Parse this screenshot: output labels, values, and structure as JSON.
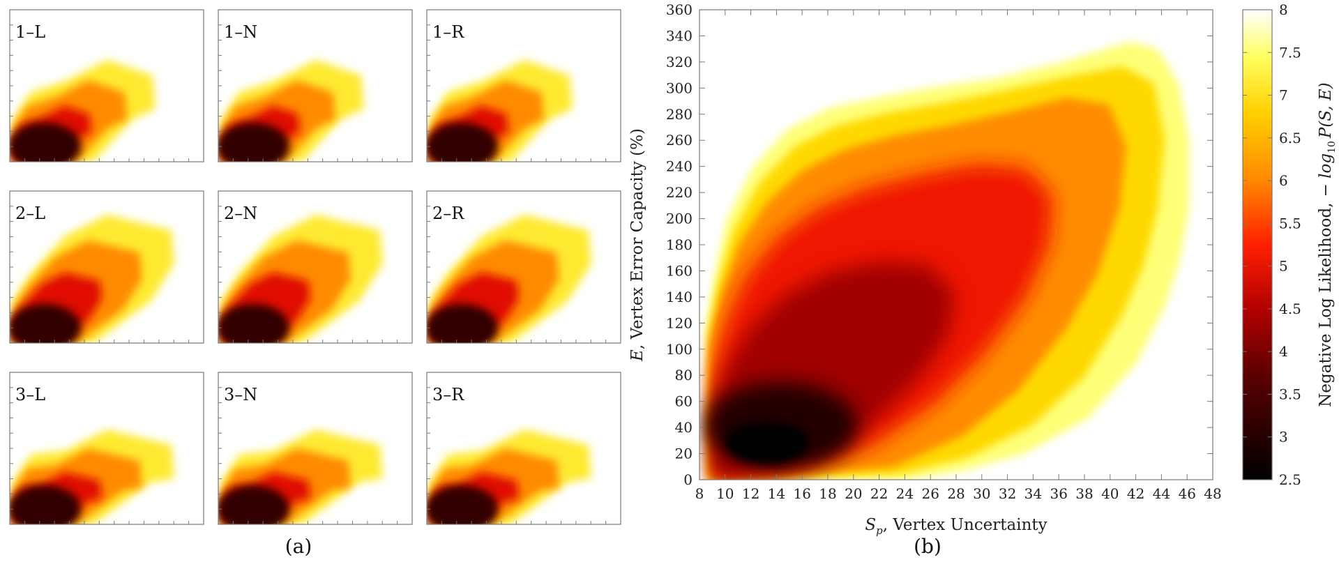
{
  "figure": {
    "caption_a": "(a)",
    "caption_b": "(b)"
  },
  "chart_data": [
    {
      "type": "heatmap",
      "panel": "a",
      "title": "",
      "subplots": [
        "1–L",
        "1–N",
        "1–R",
        "2–L",
        "2–N",
        "2–R",
        "3–L",
        "3–N",
        "3–R"
      ],
      "grid": false,
      "note_axes": "no tick labels printed"
    },
    {
      "type": "heatmap",
      "panel": "b",
      "title": "",
      "xlabel_sym": "S",
      "xlabel_sub": "p",
      "xlabel_text": ", Vertex Uncertainty",
      "ylabel_sym": "E",
      "ylabel_text": ", Vertex Error Capacity (%)",
      "xlim": [
        8,
        48
      ],
      "ylim": [
        0,
        360
      ],
      "xticks": [
        "8",
        "10",
        "12",
        "14",
        "16",
        "18",
        "20",
        "22",
        "24",
        "26",
        "28",
        "30",
        "32",
        "34",
        "36",
        "38",
        "40",
        "42",
        "44",
        "46",
        "48"
      ],
      "yticks": [
        "0",
        "20",
        "40",
        "60",
        "80",
        "100",
        "120",
        "140",
        "160",
        "180",
        "200",
        "220",
        "240",
        "260",
        "280",
        "300",
        "320",
        "340",
        "360"
      ],
      "grid": false,
      "colorbar": {
        "label_text": "Negative Log Likelihood,",
        "label_math": "− log",
        "label_sub": "10",
        "label_tail": "P(S, E)",
        "range": [
          2.5,
          8
        ],
        "ticks": [
          "2.5",
          "3",
          "3.5",
          "4",
          "4.5",
          "5",
          "5.5",
          "6",
          "6.5",
          "7",
          "7.5",
          "8"
        ],
        "colormap": "hot"
      }
    }
  ]
}
